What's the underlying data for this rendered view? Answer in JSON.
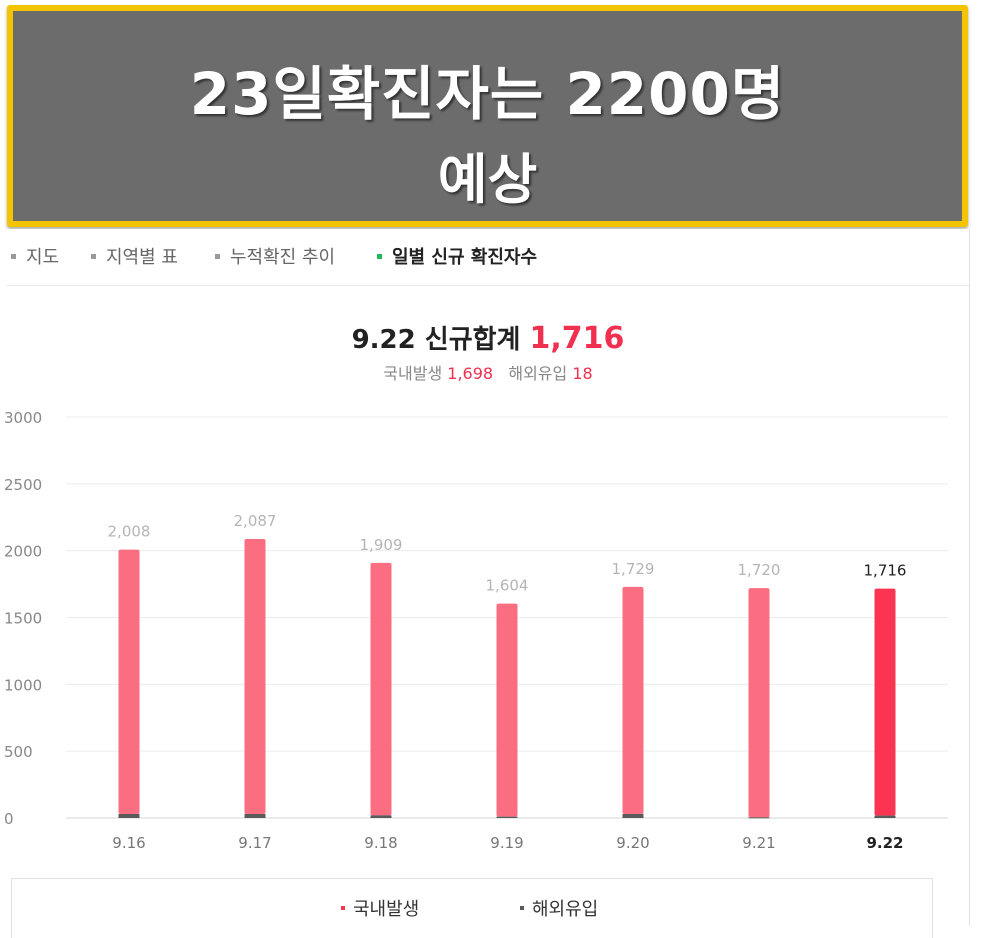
{
  "banner": {
    "line1": "23일확진자는 2200명",
    "line2": "예상"
  },
  "tabs": [
    {
      "label": "지도",
      "active": false
    },
    {
      "label": "지역별 표",
      "active": false
    },
    {
      "label": "누적확진 추이",
      "active": false
    },
    {
      "label": "일별 신규 확진자수",
      "active": true
    }
  ],
  "summary": {
    "date": "9.22",
    "title_label": "신규합계",
    "total": "1,716",
    "domestic_label": "국내발생",
    "domestic": "1,698",
    "overseas_label": "해외유입",
    "overseas": "18"
  },
  "colors": {
    "domestic": "#fb6e82",
    "domestic_highlight": "#fa3451",
    "overseas": "#5a5a5a",
    "accent": "#f0304e",
    "active_tab_bullet": "#1db954",
    "banner_border": "#f5c400"
  },
  "legend": {
    "domestic": "국내발생",
    "overseas": "해외유입"
  },
  "chart_data": {
    "type": "bar",
    "stacked": true,
    "categories": [
      "9.16",
      "9.17",
      "9.18",
      "9.19",
      "9.20",
      "9.21",
      "9.22"
    ],
    "series": [
      {
        "name": "국내발생",
        "values": [
          1978,
          2057,
          1889,
          1594,
          1699,
          1715,
          1698
        ]
      },
      {
        "name": "해외유입",
        "values": [
          30,
          30,
          20,
          10,
          30,
          5,
          18
        ]
      }
    ],
    "totals": [
      2008,
      2087,
      1909,
      1604,
      1729,
      1720,
      1716
    ],
    "total_labels": [
      "2,008",
      "2,087",
      "1,909",
      "1,604",
      "1,729",
      "1,720",
      "1,716"
    ],
    "highlight_index": 6,
    "yticks": [
      0,
      500,
      1000,
      1500,
      2000,
      2500,
      3000
    ],
    "ylim": [
      0,
      3000
    ],
    "grid": true,
    "legend_position": "bottom"
  }
}
